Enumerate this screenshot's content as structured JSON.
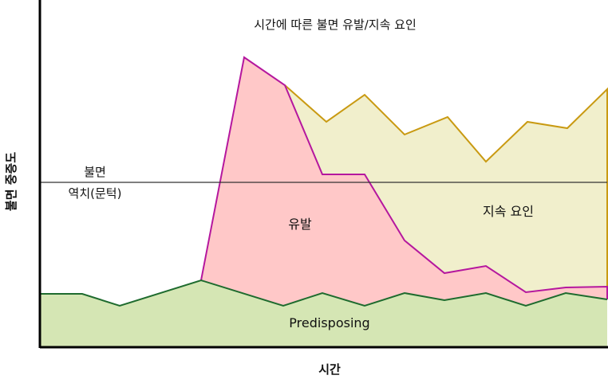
{
  "title": "시간에 따른 불면 유발/지속 요인",
  "x_axis_label": "시간",
  "y_axis_label": "불면 중증도",
  "threshold": {
    "label_line1": "불면",
    "label_line2": "역치(문턱)"
  },
  "areas": {
    "predisposing": {
      "label": "Predisposing",
      "fill": "#d5e6b4",
      "stroke": "#1e6b2e"
    },
    "precipitating": {
      "label": "유발",
      "fill": "#ffc8c8",
      "stroke": "#b5179e"
    },
    "perpetuating": {
      "label": "지속 요인",
      "fill": "#f1efcc",
      "stroke": "#c99a12"
    }
  },
  "colors": {
    "axis": "#000000",
    "threshold_line": "#333333",
    "background": "#ffffff"
  }
}
